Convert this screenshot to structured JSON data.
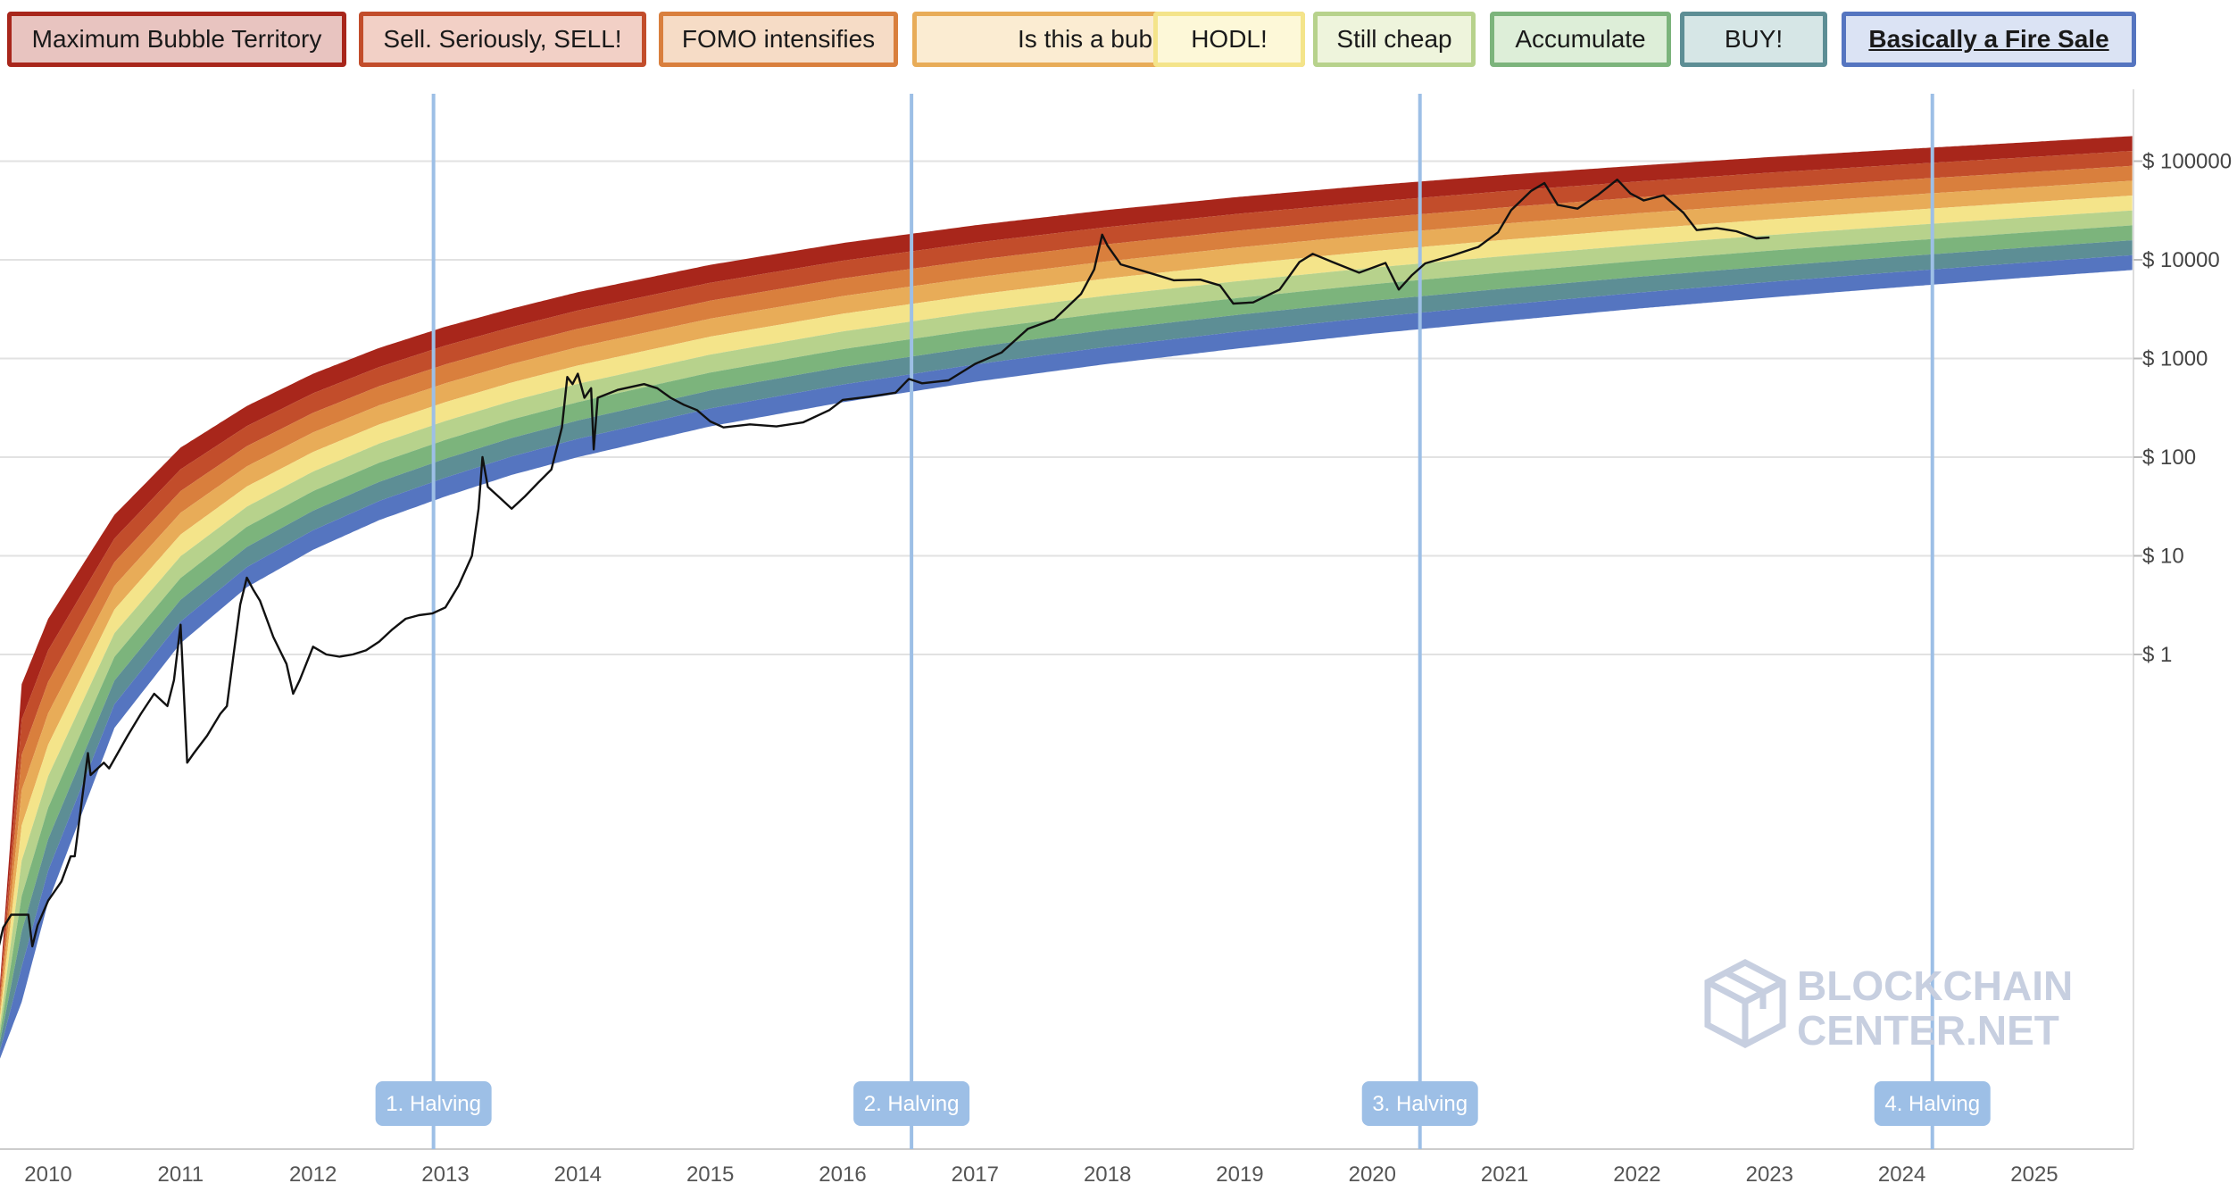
{
  "legend": {
    "items": [
      {
        "label": "Maximum Bubble Territory",
        "fill": "#e8c4c0",
        "border": "#a8261b"
      },
      {
        "label": "Sell. Seriously, SELL!",
        "fill": "#f2d0c6",
        "border": "#c24d2b"
      },
      {
        "label": "FOMO intensifies",
        "fill": "#f6dcc6",
        "border": "#d97f3d"
      },
      {
        "label": "Is this a bubble?",
        "fill": "#fbecd2",
        "border": "#e8ac58"
      },
      {
        "label": "HODL!",
        "fill": "#fdf8d8",
        "border": "#f4e48a"
      },
      {
        "label": "Still cheap",
        "fill": "#eef4dc",
        "border": "#b7d28c"
      },
      {
        "label": "Accumulate",
        "fill": "#ddeed8",
        "border": "#7cb47c"
      },
      {
        "label": "BUY!",
        "fill": "#d6e6e6",
        "border": "#5d8e95"
      },
      {
        "label": "Basically a Fire Sale",
        "fill": "#dbe3f4",
        "border": "#5575c0"
      }
    ],
    "active_index": 8
  },
  "chart_data": {
    "type": "line",
    "y_scale": "log",
    "ylim": [
      0.0001,
      500000
    ],
    "xlim": [
      2009.6,
      2025.75
    ],
    "y_ticks": [
      {
        "value": 100000,
        "label": "$ 100000"
      },
      {
        "value": 10000,
        "label": "$ 10000"
      },
      {
        "value": 1000,
        "label": "$ 1000"
      },
      {
        "value": 100,
        "label": "$ 100"
      },
      {
        "value": 10,
        "label": "$ 10"
      },
      {
        "value": 1,
        "label": "$ 1"
      }
    ],
    "x_ticks": [
      {
        "value": 2010,
        "label": "2010"
      },
      {
        "value": 2011,
        "label": "2011"
      },
      {
        "value": 2012,
        "label": "2012"
      },
      {
        "value": 2013,
        "label": "2013"
      },
      {
        "value": 2014,
        "label": "2014"
      },
      {
        "value": 2015,
        "label": "2015"
      },
      {
        "value": 2016,
        "label": "2016"
      },
      {
        "value": 2017,
        "label": "2017"
      },
      {
        "value": 2018,
        "label": "2018"
      },
      {
        "value": 2019,
        "label": "2019"
      },
      {
        "value": 2020,
        "label": "2020"
      },
      {
        "value": 2021,
        "label": "2021"
      },
      {
        "value": 2022,
        "label": "2022"
      },
      {
        "value": 2023,
        "label": "2023"
      },
      {
        "value": 2024,
        "label": "2024"
      },
      {
        "value": 2025,
        "label": "2025"
      }
    ],
    "halvings": [
      {
        "date": 2012.91,
        "label": "1. Halving"
      },
      {
        "date": 2016.52,
        "label": "2. Halving"
      },
      {
        "date": 2020.36,
        "label": "3. Halving"
      },
      {
        "date": 2024.23,
        "label": "4. Halving"
      }
    ],
    "bands": {
      "colors": [
        "#a8261b",
        "#c24d2b",
        "#d97f3d",
        "#e8ac58",
        "#f4e48a",
        "#b7d28c",
        "#7cb47c",
        "#5d8e95",
        "#5575c0"
      ],
      "upper_edge": [
        [
          2009.6,
          0.0001
        ],
        [
          2009.8,
          0.5
        ],
        [
          2010.0,
          2.3
        ],
        [
          2010.5,
          26
        ],
        [
          2011.0,
          125
        ],
        [
          2011.5,
          330
        ],
        [
          2012.0,
          700
        ],
        [
          2012.5,
          1280
        ],
        [
          2013.0,
          2100
        ],
        [
          2013.5,
          3200
        ],
        [
          2014.0,
          4700
        ],
        [
          2015.0,
          8900
        ],
        [
          2016.0,
          14800
        ],
        [
          2017.0,
          22400
        ],
        [
          2018.0,
          32000
        ],
        [
          2019.0,
          43500
        ],
        [
          2020.0,
          57000
        ],
        [
          2021.0,
          72500
        ],
        [
          2022.0,
          90000
        ],
        [
          2023.0,
          110000
        ],
        [
          2024.0,
          132000
        ],
        [
          2025.0,
          157000
        ],
        [
          2025.75,
          180000
        ]
      ],
      "lower_edge": [
        [
          2009.6,
          6e-05
        ],
        [
          2009.8,
          0.0003
        ],
        [
          2010.0,
          0.0031
        ],
        [
          2010.5,
          0.18
        ],
        [
          2011.0,
          1.3
        ],
        [
          2011.5,
          4.8
        ],
        [
          2012.0,
          11.5
        ],
        [
          2012.5,
          23
        ],
        [
          2013.0,
          40
        ],
        [
          2013.5,
          66
        ],
        [
          2014.0,
          100
        ],
        [
          2015.0,
          205
        ],
        [
          2016.0,
          360
        ],
        [
          2017.0,
          580
        ],
        [
          2018.0,
          880
        ],
        [
          2019.0,
          1270
        ],
        [
          2020.0,
          1780
        ],
        [
          2021.0,
          2400
        ],
        [
          2022.0,
          3200
        ],
        [
          2023.0,
          4150
        ],
        [
          2024.0,
          5300
        ],
        [
          2025.0,
          6700
        ],
        [
          2025.75,
          7900
        ]
      ]
    },
    "series": [
      {
        "points": [
          [
            2009.6,
            0.0006
          ],
          [
            2009.62,
            0.001
          ],
          [
            2009.66,
            0.0017
          ],
          [
            2009.72,
            0.0023
          ],
          [
            2009.78,
            0.0023
          ],
          [
            2009.85,
            0.0023
          ],
          [
            2009.88,
            0.0011
          ],
          [
            2009.92,
            0.0018
          ],
          [
            2010.0,
            0.0032
          ],
          [
            2010.1,
            0.005
          ],
          [
            2010.17,
            0.009
          ],
          [
            2010.2,
            0.009
          ],
          [
            2010.3,
            0.1
          ],
          [
            2010.32,
            0.06
          ],
          [
            2010.42,
            0.08
          ],
          [
            2010.46,
            0.07
          ],
          [
            2010.6,
            0.15
          ],
          [
            2010.7,
            0.25
          ],
          [
            2010.8,
            0.4
          ],
          [
            2010.9,
            0.3
          ],
          [
            2010.95,
            0.55
          ],
          [
            2011.0,
            2.0
          ],
          [
            2011.05,
            0.08
          ],
          [
            2011.1,
            0.1
          ],
          [
            2011.2,
            0.15
          ],
          [
            2011.3,
            0.25
          ],
          [
            2011.35,
            0.3
          ],
          [
            2011.4,
            1.0
          ],
          [
            2011.45,
            3.2
          ],
          [
            2011.5,
            6.0
          ],
          [
            2011.55,
            4.5
          ],
          [
            2011.6,
            3.5
          ],
          [
            2011.7,
            1.5
          ],
          [
            2011.8,
            0.8
          ],
          [
            2011.85,
            0.4
          ],
          [
            2011.9,
            0.55
          ],
          [
            2012.0,
            1.2
          ],
          [
            2012.1,
            1.0
          ],
          [
            2012.2,
            0.95
          ],
          [
            2012.3,
            1.0
          ],
          [
            2012.4,
            1.1
          ],
          [
            2012.5,
            1.35
          ],
          [
            2012.6,
            1.8
          ],
          [
            2012.7,
            2.3
          ],
          [
            2012.8,
            2.5
          ],
          [
            2012.9,
            2.6
          ],
          [
            2013.0,
            3.0
          ],
          [
            2013.1,
            5.0
          ],
          [
            2013.2,
            10
          ],
          [
            2013.25,
            30
          ],
          [
            2013.28,
            100
          ],
          [
            2013.32,
            50
          ],
          [
            2013.4,
            40
          ],
          [
            2013.5,
            30
          ],
          [
            2013.6,
            40
          ],
          [
            2013.7,
            55
          ],
          [
            2013.8,
            75
          ],
          [
            2013.88,
            200
          ],
          [
            2013.92,
            650
          ],
          [
            2013.96,
            550
          ],
          [
            2014.0,
            700
          ],
          [
            2014.05,
            400
          ],
          [
            2014.1,
            500
          ],
          [
            2014.12,
            120
          ],
          [
            2014.15,
            400
          ],
          [
            2014.3,
            480
          ],
          [
            2014.5,
            550
          ],
          [
            2014.6,
            500
          ],
          [
            2014.7,
            400
          ],
          [
            2014.8,
            340
          ],
          [
            2014.9,
            300
          ],
          [
            2015.0,
            230
          ],
          [
            2015.1,
            200
          ],
          [
            2015.3,
            215
          ],
          [
            2015.5,
            205
          ],
          [
            2015.7,
            225
          ],
          [
            2015.9,
            300
          ],
          [
            2016.0,
            380
          ],
          [
            2016.2,
            410
          ],
          [
            2016.4,
            450
          ],
          [
            2016.5,
            620
          ],
          [
            2016.6,
            560
          ],
          [
            2016.8,
            600
          ],
          [
            2017.0,
            880
          ],
          [
            2017.2,
            1150
          ],
          [
            2017.4,
            2000
          ],
          [
            2017.6,
            2500
          ],
          [
            2017.8,
            4500
          ],
          [
            2017.9,
            8000
          ],
          [
            2017.96,
            18000
          ],
          [
            2018.0,
            14000
          ],
          [
            2018.1,
            9000
          ],
          [
            2018.3,
            7500
          ],
          [
            2018.5,
            6200
          ],
          [
            2018.7,
            6300
          ],
          [
            2018.85,
            5500
          ],
          [
            2018.95,
            3600
          ],
          [
            2019.1,
            3700
          ],
          [
            2019.3,
            5000
          ],
          [
            2019.45,
            9500
          ],
          [
            2019.55,
            11500
          ],
          [
            2019.7,
            9500
          ],
          [
            2019.9,
            7400
          ],
          [
            2020.1,
            9300
          ],
          [
            2020.2,
            5000
          ],
          [
            2020.3,
            7000
          ],
          [
            2020.4,
            9200
          ],
          [
            2020.6,
            11000
          ],
          [
            2020.8,
            13500
          ],
          [
            2020.95,
            19000
          ],
          [
            2021.05,
            32000
          ],
          [
            2021.2,
            50000
          ],
          [
            2021.3,
            60000
          ],
          [
            2021.4,
            36000
          ],
          [
            2021.55,
            33000
          ],
          [
            2021.7,
            45000
          ],
          [
            2021.85,
            65000
          ],
          [
            2021.95,
            47000
          ],
          [
            2022.05,
            40000
          ],
          [
            2022.2,
            45000
          ],
          [
            2022.35,
            30000
          ],
          [
            2022.45,
            20000
          ],
          [
            2022.6,
            21000
          ],
          [
            2022.75,
            19500
          ],
          [
            2022.9,
            16500
          ],
          [
            2023.0,
            16800
          ]
        ]
      }
    ],
    "annotation": "BLOCKCHAIN CENTER.NET"
  }
}
